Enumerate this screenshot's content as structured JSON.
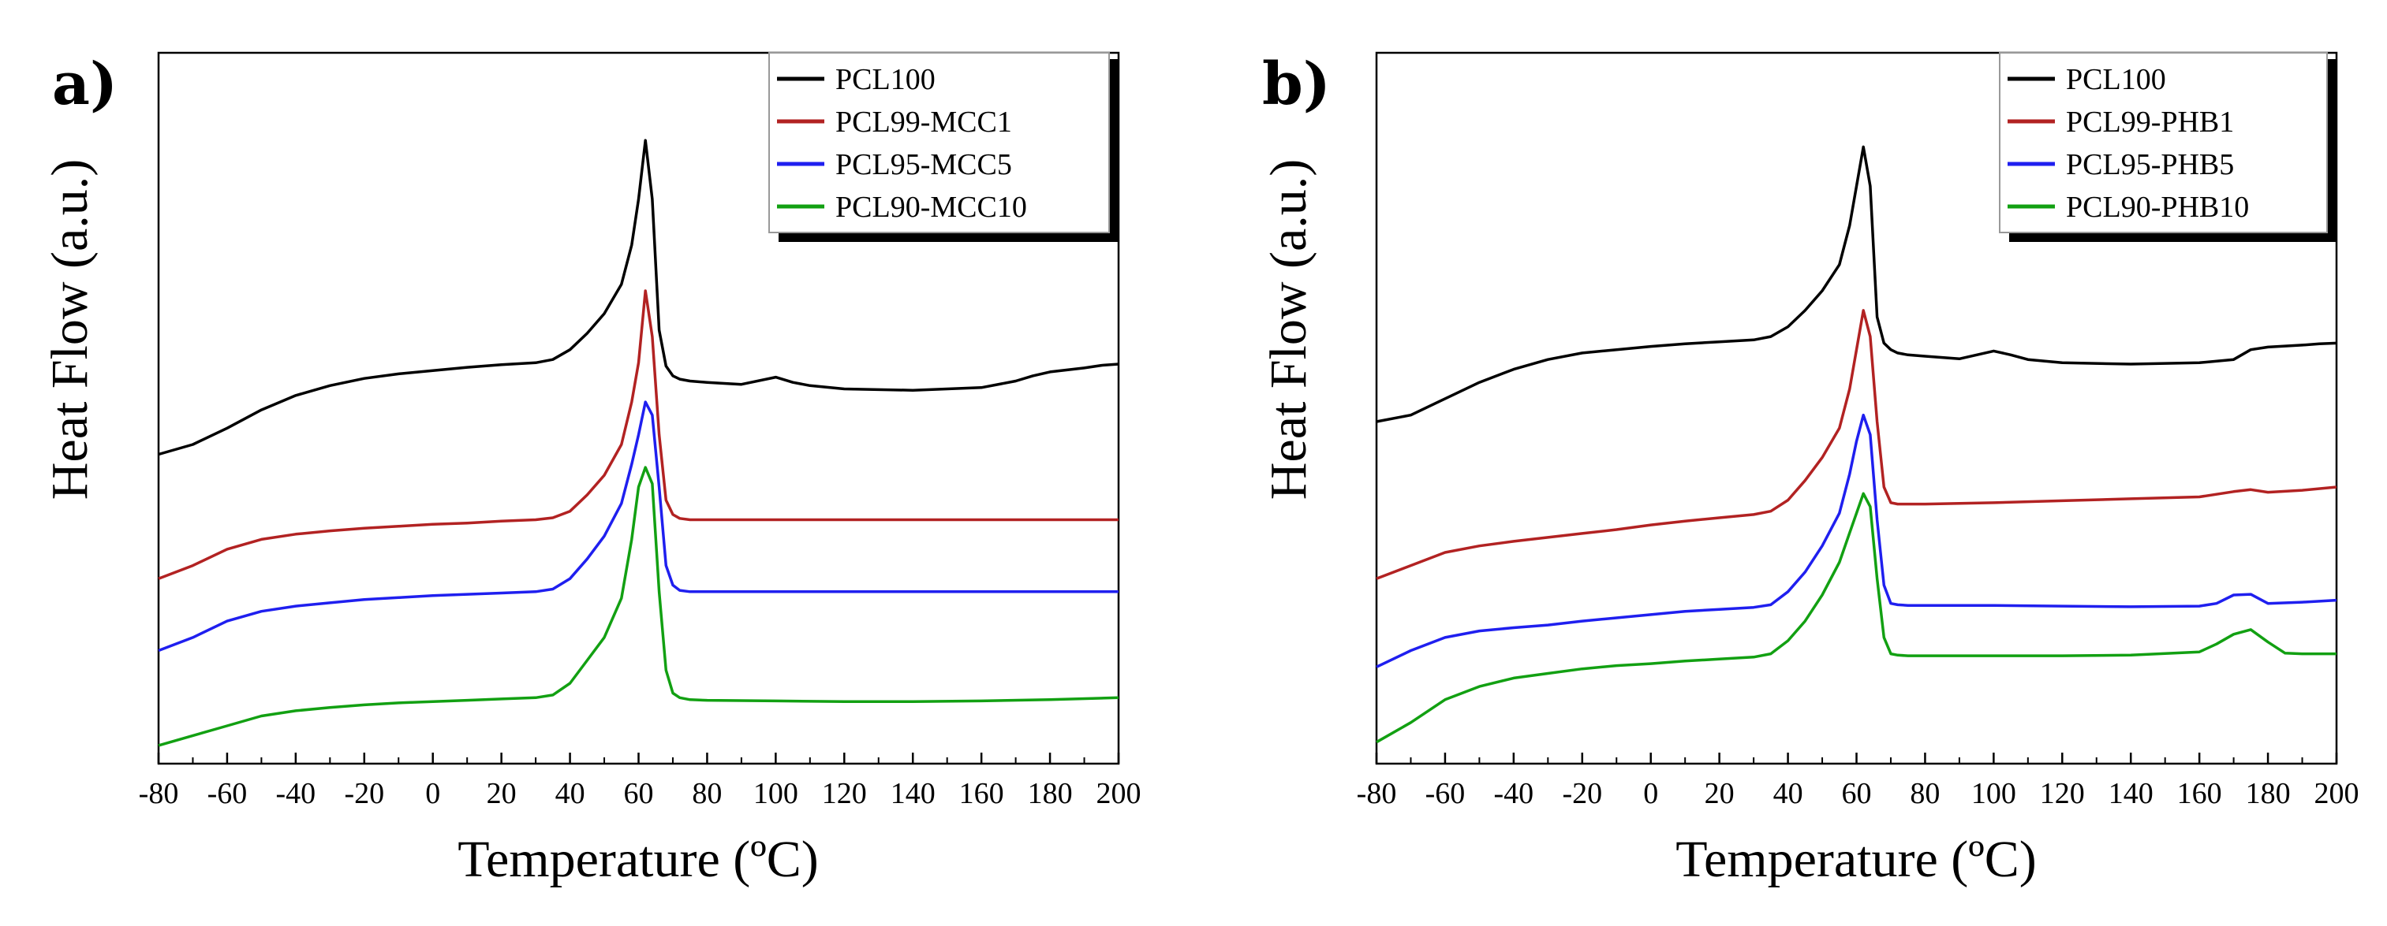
{
  "figure": {
    "panels": [
      {
        "label": "a)"
      },
      {
        "label": "b)"
      }
    ]
  },
  "colors": {
    "PCL100": "#000000",
    "red": "#b22222",
    "blue": "#1f1fef",
    "green": "#12a012"
  },
  "chart_data": [
    {
      "type": "line",
      "panel": "a)",
      "xlabel": "Temperature (ºC)",
      "ylabel": "Heat Flow (a.u.)",
      "xlim": [
        -80,
        200
      ],
      "ylim": [
        0,
        100
      ],
      "xticks": [
        "-80",
        "-60",
        "-40",
        "-20",
        "0",
        "20",
        "40",
        "60",
        "80",
        "100",
        "120",
        "140",
        "160",
        "180",
        "200"
      ],
      "grid": false,
      "legend_position": "top-right",
      "series": [
        {
          "name": "PCL100",
          "color": "#000000",
          "x": [
            -80,
            -70,
            -60,
            -50,
            -40,
            -30,
            -20,
            -10,
            0,
            10,
            20,
            30,
            35,
            40,
            45,
            50,
            55,
            58,
            60,
            62,
            64,
            66,
            68,
            70,
            72,
            75,
            80,
            90,
            100,
            105,
            110,
            120,
            140,
            160,
            170,
            175,
            180,
            190,
            195,
            200
          ],
          "y": [
            45,
            46.5,
            49,
            51.8,
            54,
            55.5,
            56.6,
            57.3,
            57.8,
            58.3,
            58.7,
            59,
            59.5,
            61,
            63.5,
            66.5,
            71,
            77,
            84,
            93,
            84,
            64,
            58.5,
            57,
            56.5,
            56.2,
            56,
            55.7,
            56.8,
            56,
            55.5,
            55,
            54.8,
            55.2,
            56.2,
            57,
            57.6,
            58.2,
            58.6,
            58.8
          ]
        },
        {
          "name": "PCL99-MCC1",
          "color": "#b22222",
          "x": [
            -80,
            -70,
            -60,
            -50,
            -40,
            -30,
            -20,
            -10,
            0,
            10,
            20,
            30,
            35,
            40,
            45,
            50,
            55,
            58,
            60,
            62,
            64,
            66,
            68,
            70,
            72,
            75,
            80,
            100,
            120,
            140,
            160,
            180,
            200
          ],
          "y": [
            26,
            28,
            30.5,
            32,
            32.8,
            33.3,
            33.7,
            34,
            34.3,
            34.5,
            34.8,
            35,
            35.3,
            36.3,
            38.8,
            41.8,
            46.5,
            53,
            59,
            70,
            63,
            48,
            38,
            35.8,
            35.2,
            35,
            35,
            35,
            35,
            35,
            35,
            35,
            35
          ]
        },
        {
          "name": "PCL95-MCC5",
          "color": "#1f1fef",
          "x": [
            -80,
            -70,
            -60,
            -50,
            -40,
            -30,
            -20,
            -10,
            0,
            10,
            20,
            30,
            35,
            40,
            45,
            50,
            55,
            58,
            60,
            62,
            64,
            66,
            68,
            70,
            72,
            75,
            80,
            100,
            120,
            140,
            160,
            180,
            200
          ],
          "y": [
            15,
            17,
            19.5,
            21,
            21.8,
            22.3,
            22.8,
            23.1,
            23.4,
            23.6,
            23.8,
            24,
            24.4,
            26,
            29,
            32.5,
            37.5,
            43.5,
            48,
            53,
            51,
            40,
            28,
            25,
            24.2,
            24,
            24,
            24,
            24,
            24,
            24,
            24,
            24
          ]
        },
        {
          "name": "PCL90-MCC10",
          "color": "#12a012",
          "x": [
            -80,
            -70,
            -60,
            -50,
            -40,
            -30,
            -20,
            -10,
            0,
            10,
            20,
            30,
            35,
            40,
            45,
            50,
            55,
            58,
            60,
            62,
            64,
            66,
            68,
            70,
            72,
            75,
            80,
            100,
            120,
            140,
            160,
            180,
            200
          ],
          "y": [
            0.5,
            2,
            3.5,
            5,
            5.8,
            6.3,
            6.7,
            7,
            7.2,
            7.4,
            7.6,
            7.8,
            8.2,
            10,
            13.5,
            17,
            23,
            32,
            40,
            43,
            40.5,
            24,
            12,
            8.5,
            7.8,
            7.5,
            7.4,
            7.3,
            7.2,
            7.2,
            7.3,
            7.5,
            7.8
          ]
        }
      ]
    },
    {
      "type": "line",
      "panel": "b)",
      "xlabel": "Temperature (ºC)",
      "ylabel": "Heat Flow (a.u.)",
      "xlim": [
        -80,
        200
      ],
      "ylim": [
        0,
        100
      ],
      "xticks": [
        "-80",
        "-60",
        "-40",
        "-20",
        "0",
        "20",
        "40",
        "60",
        "80",
        "100",
        "120",
        "140",
        "160",
        "180",
        "200"
      ],
      "grid": false,
      "legend_position": "top-right",
      "series": [
        {
          "name": "PCL100",
          "color": "#000000",
          "x": [
            -80,
            -70,
            -60,
            -50,
            -40,
            -30,
            -20,
            -10,
            0,
            10,
            20,
            30,
            35,
            40,
            45,
            50,
            55,
            58,
            60,
            62,
            64,
            66,
            68,
            70,
            72,
            75,
            80,
            90,
            100,
            105,
            110,
            120,
            140,
            160,
            170,
            175,
            180,
            190,
            195,
            200
          ],
          "y": [
            50,
            51,
            53.5,
            56,
            58,
            59.5,
            60.5,
            61,
            61.5,
            61.9,
            62.2,
            62.5,
            63,
            64.5,
            67,
            70,
            74,
            80,
            86,
            92,
            86,
            66,
            62,
            61,
            60.5,
            60.2,
            60,
            59.6,
            60.8,
            60.2,
            59.5,
            59,
            58.8,
            59,
            59.5,
            61,
            61.4,
            61.7,
            61.9,
            62
          ]
        },
        {
          "name": "PCL99-PHB1",
          "color": "#b22222",
          "x": [
            -80,
            -70,
            -60,
            -50,
            -40,
            -30,
            -20,
            -10,
            0,
            10,
            20,
            30,
            35,
            40,
            45,
            50,
            55,
            58,
            60,
            62,
            64,
            66,
            68,
            70,
            72,
            75,
            80,
            100,
            120,
            140,
            160,
            170,
            175,
            180,
            190,
            200
          ],
          "y": [
            26,
            28,
            30,
            31,
            31.7,
            32.3,
            32.9,
            33.5,
            34.2,
            34.8,
            35.3,
            35.8,
            36.3,
            38,
            41,
            44.5,
            49,
            55,
            61,
            67,
            63,
            50,
            40,
            37.6,
            37.4,
            37.4,
            37.4,
            37.6,
            37.9,
            38.2,
            38.5,
            39.3,
            39.6,
            39.2,
            39.5,
            40
          ]
        },
        {
          "name": "PCL95-PHB5",
          "color": "#1f1fef",
          "x": [
            -80,
            -70,
            -60,
            -50,
            -40,
            -30,
            -20,
            -10,
            0,
            10,
            20,
            30,
            35,
            40,
            45,
            50,
            55,
            58,
            60,
            62,
            64,
            66,
            68,
            70,
            72,
            75,
            80,
            100,
            120,
            140,
            160,
            165,
            170,
            175,
            180,
            190,
            200
          ],
          "y": [
            12.5,
            15,
            17,
            18,
            18.5,
            18.9,
            19.5,
            20,
            20.5,
            21,
            21.3,
            21.6,
            22,
            24,
            27,
            31,
            36,
            42,
            47,
            51,
            48,
            35,
            25,
            22.2,
            22,
            21.9,
            21.9,
            21.9,
            21.8,
            21.7,
            21.8,
            22.2,
            23.5,
            23.6,
            22.2,
            22.4,
            22.7
          ]
        },
        {
          "name": "PCL90-PHB10",
          "color": "#12a012",
          "x": [
            -80,
            -70,
            -60,
            -50,
            -40,
            -30,
            -20,
            -10,
            0,
            10,
            20,
            30,
            35,
            40,
            45,
            50,
            55,
            58,
            60,
            62,
            64,
            66,
            68,
            70,
            72,
            75,
            80,
            100,
            120,
            140,
            160,
            165,
            170,
            175,
            180,
            185,
            190,
            200
          ],
          "y": [
            1,
            4,
            7.5,
            9.5,
            10.8,
            11.5,
            12.2,
            12.7,
            13,
            13.4,
            13.7,
            14,
            14.5,
            16.5,
            19.5,
            23.5,
            28.5,
            33,
            36,
            39,
            37,
            26,
            17,
            14.5,
            14.3,
            14.2,
            14.2,
            14.2,
            14.2,
            14.3,
            14.8,
            16,
            17.5,
            18.2,
            16.3,
            14.6,
            14.5,
            14.5
          ]
        }
      ]
    }
  ]
}
